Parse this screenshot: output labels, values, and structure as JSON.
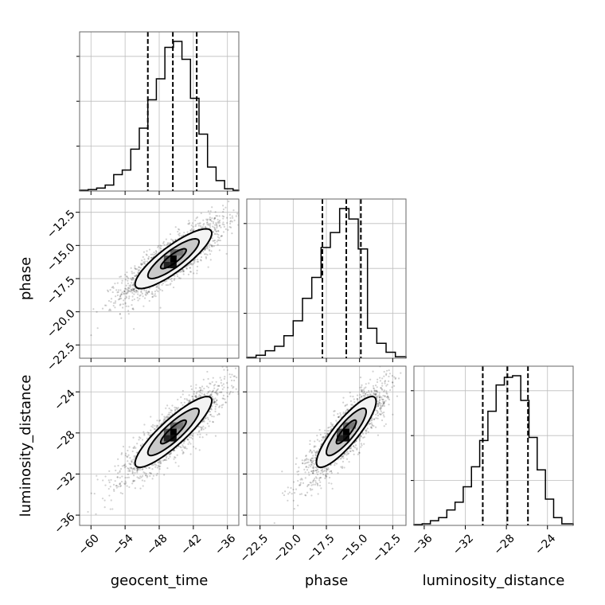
{
  "chart_data": {
    "type": "corner",
    "parameters": [
      "geocent_time",
      "phase",
      "luminosity_distance"
    ],
    "axes": {
      "geocent_time": {
        "label": "geocent_time",
        "range": [
          -62,
          -34
        ],
        "ticks": [
          -60,
          -54,
          -48,
          -42,
          -36
        ],
        "tick_labels": [
          "−60",
          "−54",
          "−48",
          "−42",
          "−36"
        ]
      },
      "phase": {
        "label": "phase",
        "range": [
          -23.5,
          -11.5
        ],
        "ticks": [
          -22.5,
          -20.0,
          -17.5,
          -15.0,
          -12.5
        ],
        "tick_labels": [
          "−22.5",
          "−20.0",
          "−17.5",
          "−15.0",
          "−12.5"
        ]
      },
      "luminosity_distance": {
        "label": "luminosity_distance",
        "range": [
          -37,
          -21.5
        ],
        "ticks": [
          -36,
          -32,
          -28,
          -24
        ],
        "tick_labels": [
          "−36",
          "−32",
          "−28",
          "−24"
        ]
      }
    },
    "histograms": [
      {
        "param": "geocent_time",
        "bin_edges": [
          -62,
          -60.5,
          -59,
          -57.5,
          -56,
          -54.5,
          -53,
          -51.5,
          -50,
          -48.5,
          -47,
          -45.5,
          -44,
          -42.5,
          -41,
          -39.5,
          -38,
          -36.5,
          -35,
          -34
        ],
        "counts": [
          0.005,
          0.01,
          0.02,
          0.04,
          0.11,
          0.14,
          0.28,
          0.42,
          0.61,
          0.75,
          0.96,
          1.0,
          0.88,
          0.62,
          0.38,
          0.16,
          0.07,
          0.015,
          0.005
        ],
        "quantiles": [
          -50.0,
          -45.6,
          -41.4
        ]
      },
      {
        "param": "phase",
        "bin_edges": [
          -23.5,
          -22.8,
          -22.1,
          -21.4,
          -20.7,
          -20.0,
          -19.3,
          -18.6,
          -17.9,
          -17.2,
          -16.5,
          -15.8,
          -15.1,
          -14.4,
          -13.7,
          -13.0,
          -12.3,
          -11.5
        ],
        "counts": [
          0.005,
          0.02,
          0.05,
          0.08,
          0.15,
          0.25,
          0.4,
          0.54,
          0.74,
          0.84,
          1.0,
          0.93,
          0.73,
          0.2,
          0.1,
          0.04,
          0.01
        ],
        "quantiles": [
          -17.8,
          -16.0,
          -14.9
        ]
      },
      {
        "param": "luminosity_distance",
        "bin_edges": [
          -37,
          -36.2,
          -35.4,
          -34.6,
          -33.8,
          -33.0,
          -32.2,
          -31.4,
          -30.6,
          -29.8,
          -29.0,
          -28.2,
          -27.4,
          -26.6,
          -25.8,
          -25.0,
          -24.2,
          -23.4,
          -22.6,
          -21.5
        ],
        "counts": [
          0.005,
          0.01,
          0.03,
          0.05,
          0.1,
          0.15,
          0.25,
          0.38,
          0.55,
          0.74,
          0.91,
          0.96,
          0.97,
          0.81,
          0.57,
          0.36,
          0.17,
          0.05,
          0.01
        ],
        "quantiles": [
          -30.3,
          -27.9,
          -25.9
        ]
      }
    ],
    "pairs": [
      {
        "x": "geocent_time",
        "y": "phase",
        "mean": [
          -45.5,
          -16.0
        ],
        "sd": [
          4.5,
          1.5
        ],
        "rho": 0.85
      },
      {
        "x": "geocent_time",
        "y": "luminosity_distance",
        "mean": [
          -45.5,
          -27.9
        ],
        "sd": [
          4.5,
          2.3
        ],
        "rho": 0.88
      },
      {
        "x": "phase",
        "y": "luminosity_distance",
        "mean": [
          -16.0,
          -27.9
        ],
        "sd": [
          1.5,
          2.3
        ],
        "rho": 0.86
      }
    ],
    "contour_levels": [
      0.5,
      1.0,
      1.5
    ],
    "grid": true,
    "legend": "none"
  }
}
